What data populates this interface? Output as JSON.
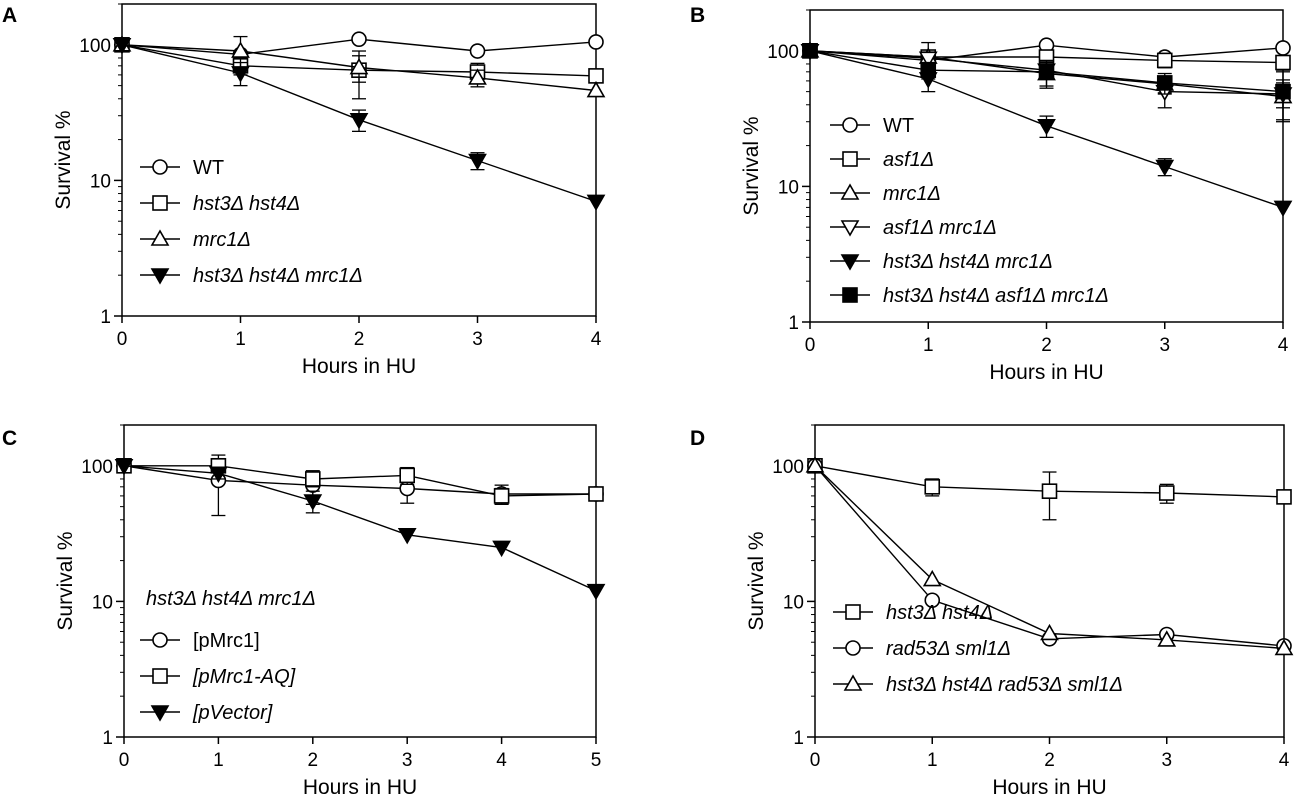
{
  "chart_data": [
    {
      "panel": "A",
      "type": "line",
      "xlabel": "Hours in HU",
      "ylabel": "Survival %",
      "yscale": "log",
      "xlim": [
        0,
        4
      ],
      "ylim": [
        1,
        200
      ],
      "xticks": [
        "0",
        "1",
        "2",
        "3",
        "4"
      ],
      "yticks": [
        "1",
        "10",
        "100"
      ],
      "x": [
        0,
        1,
        2,
        3,
        4
      ],
      "legend_header": "",
      "legend_position": "lower-left",
      "series": [
        {
          "name": "WT",
          "italic": false,
          "marker": "circle-open",
          "values": [
            100,
            85,
            110,
            90,
            105
          ],
          "err": [
            0,
            0,
            0,
            0,
            0
          ]
        },
        {
          "name": "hst3Δ hst4Δ",
          "italic": true,
          "marker": "square-open",
          "values": [
            100,
            70,
            65,
            63,
            59
          ],
          "err": [
            0,
            10,
            25,
            10,
            0
          ]
        },
        {
          "name": "mrc1Δ",
          "italic": true,
          "marker": "triangle-up-open",
          "values": [
            100,
            90,
            68,
            57,
            46
          ],
          "err": [
            0,
            25,
            15,
            8,
            0
          ]
        },
        {
          "name": "hst3Δ hst4Δ mrc1Δ",
          "italic": true,
          "marker": "triangle-down-filled",
          "values": [
            100,
            62,
            28,
            14,
            7
          ],
          "err": [
            0,
            12,
            5,
            2,
            0
          ]
        }
      ]
    },
    {
      "panel": "B",
      "type": "line",
      "xlabel": "Hours in HU",
      "ylabel": "Survival %",
      "yscale": "log",
      "xlim": [
        0,
        4
      ],
      "ylim": [
        1,
        200
      ],
      "xticks": [
        "0",
        "1",
        "2",
        "3",
        "4"
      ],
      "yticks": [
        "1",
        "10",
        "100"
      ],
      "x": [
        0,
        1,
        2,
        3,
        4
      ],
      "legend_header": "",
      "legend_position": "lower-left",
      "series": [
        {
          "name": "WT",
          "italic": false,
          "marker": "circle-open",
          "values": [
            100,
            85,
            110,
            90,
            105
          ],
          "err": [
            0,
            0,
            0,
            0,
            0
          ]
        },
        {
          "name": "asf1Δ",
          "italic": true,
          "marker": "square-open",
          "values": [
            100,
            90,
            90,
            85,
            82
          ],
          "err": [
            0,
            8,
            10,
            10,
            10
          ]
        },
        {
          "name": "mrc1Δ",
          "italic": true,
          "marker": "triangle-up-open",
          "values": [
            100,
            90,
            68,
            57,
            46
          ],
          "err": [
            0,
            25,
            15,
            8,
            15
          ]
        },
        {
          "name": "asf1Δ mrc1Δ",
          "italic": true,
          "marker": "triangle-down-open",
          "values": [
            100,
            88,
            72,
            50,
            48
          ],
          "err": [
            0,
            10,
            10,
            12,
            10
          ]
        },
        {
          "name": "hst3Δ hst4Δ mrc1Δ",
          "italic": true,
          "marker": "triangle-down-filled",
          "values": [
            100,
            62,
            28,
            14,
            7
          ],
          "err": [
            0,
            12,
            5,
            2,
            0
          ]
        },
        {
          "name": "hst3Δ hst4Δ asf1Δ mrc1Δ",
          "italic": true,
          "marker": "square-filled",
          "values": [
            100,
            72,
            70,
            58,
            50
          ],
          "err": [
            0,
            10,
            15,
            10,
            20
          ]
        }
      ]
    },
    {
      "panel": "C",
      "type": "line",
      "xlabel": "Hours in HU",
      "ylabel": "Survival %",
      "yscale": "log",
      "xlim": [
        0,
        5
      ],
      "ylim": [
        1,
        200
      ],
      "xticks": [
        "0",
        "1",
        "2",
        "3",
        "4",
        "5"
      ],
      "yticks": [
        "1",
        "10",
        "100"
      ],
      "x": [
        0,
        1,
        2,
        3,
        4,
        5
      ],
      "legend_header": "hst3Δ hst4Δ mrc1Δ",
      "legend_position": "lower-left",
      "series": [
        {
          "name": "[pMrc1]",
          "italic": false,
          "marker": "circle-open",
          "values": [
            100,
            78,
            72,
            68,
            62,
            62
          ],
          "err": [
            0,
            35,
            20,
            15,
            10,
            0
          ]
        },
        {
          "name": "[pMrc1-AQ]",
          "italic": true,
          "marker": "square-open",
          "values": [
            100,
            100,
            80,
            85,
            60,
            62
          ],
          "err": [
            0,
            20,
            10,
            12,
            8,
            0
          ]
        },
        {
          "name": "[pVector]",
          "italic": true,
          "marker": "triangle-down-filled",
          "values": [
            100,
            88,
            55,
            31,
            25,
            12
          ],
          "err": [
            0,
            0,
            10,
            0,
            0,
            0
          ]
        }
      ]
    },
    {
      "panel": "D",
      "type": "line",
      "xlabel": "Hours in HU",
      "ylabel": "Survival %",
      "yscale": "log",
      "xlim": [
        0,
        4
      ],
      "ylim": [
        1,
        200
      ],
      "xticks": [
        "0",
        "1",
        "2",
        "3",
        "4"
      ],
      "yticks": [
        "1",
        "10",
        "100"
      ],
      "x": [
        0,
        1,
        2,
        3,
        4
      ],
      "legend_header": "",
      "legend_position": "lower-left",
      "series": [
        {
          "name": "hst3Δ hst4Δ",
          "italic": true,
          "marker": "square-open",
          "values": [
            100,
            70,
            65,
            63,
            59
          ],
          "err": [
            0,
            10,
            25,
            10,
            0
          ]
        },
        {
          "name": "rad53Δ sml1Δ",
          "italic": true,
          "marker": "circle-open",
          "values": [
            100,
            10.2,
            5.3,
            5.7,
            4.7
          ],
          "err": [
            0,
            0,
            0,
            0,
            0
          ]
        },
        {
          "name": "hst3Δ hst4Δ rad53Δ sml1Δ",
          "italic": true,
          "marker": "triangle-up-open",
          "values": [
            100,
            14.5,
            5.8,
            5.2,
            4.5
          ],
          "err": [
            0,
            0,
            0,
            0,
            0
          ]
        }
      ]
    }
  ]
}
